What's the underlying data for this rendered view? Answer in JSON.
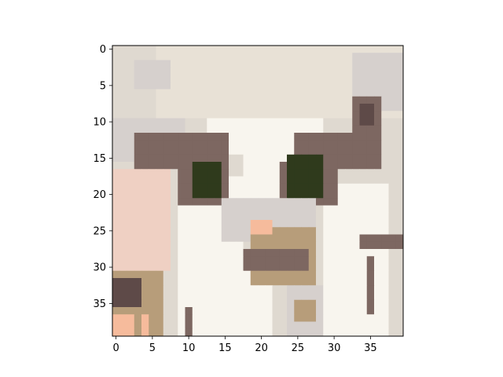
{
  "figure": {
    "xaxis": {
      "ticks": [
        "0",
        "5",
        "10",
        "15",
        "20",
        "25",
        "30",
        "35"
      ]
    },
    "yaxis": {
      "ticks": [
        "0",
        "5",
        "10",
        "15",
        "20",
        "25",
        "30",
        "35"
      ]
    }
  },
  "chart_data": {
    "type": "heatmap",
    "title": "",
    "xlabel": "",
    "ylabel": "",
    "xlim": [
      -0.5,
      39.5
    ],
    "ylim": [
      39.5,
      -0.5
    ],
    "grid": false,
    "legend": "none",
    "x_ticks": [
      0,
      5,
      10,
      15,
      20,
      25,
      30,
      35
    ],
    "y_ticks": [
      0,
      5,
      10,
      15,
      20,
      25,
      30,
      35
    ],
    "image_size": [
      40,
      40
    ],
    "palette": {
      "beige": "#dfd9d0",
      "cream": "#e8e1d6",
      "grey": "#d6d0cd",
      "white": "#f8f5ee",
      "brown": "#7d6761",
      "dark_brown": "#5e4a48",
      "dark_green": "#2f3a1c",
      "tan": "#b79d7a",
      "pink": "#efd0c3",
      "salmon": "#f6bb9c"
    },
    "regions": [
      {
        "color": "cream",
        "x0": 6,
        "y0": 0,
        "x1": 40,
        "y1": 10
      },
      {
        "color": "grey",
        "x0": 3,
        "y0": 2,
        "x1": 8,
        "y1": 6
      },
      {
        "color": "grey",
        "x0": 33,
        "y0": 1,
        "x1": 40,
        "y1": 9
      },
      {
        "color": "grey",
        "x0": 0,
        "y0": 10,
        "x1": 10,
        "y1": 16
      },
      {
        "color": "beige",
        "x0": 36,
        "y0": 10,
        "x1": 40,
        "y1": 26
      },
      {
        "color": "white",
        "x0": 13,
        "y0": 10,
        "x1": 29,
        "y1": 15
      },
      {
        "color": "pink",
        "x0": 0,
        "y0": 17,
        "x1": 8,
        "y1": 31
      },
      {
        "color": "brown",
        "x0": 3,
        "y0": 12,
        "x1": 16,
        "y1": 17
      },
      {
        "color": "brown",
        "x0": 25,
        "y0": 12,
        "x1": 37,
        "y1": 17
      },
      {
        "color": "brown",
        "x0": 33,
        "y0": 7,
        "x1": 37,
        "y1": 13
      },
      {
        "color": "dark_brown",
        "x0": 34,
        "y0": 8,
        "x1": 36,
        "y1": 11
      },
      {
        "color": "white",
        "x0": 9,
        "y0": 18,
        "x1": 18,
        "y1": 28
      },
      {
        "color": "white",
        "x0": 29,
        "y0": 19,
        "x1": 38,
        "y1": 30
      },
      {
        "color": "white",
        "x0": 9,
        "y0": 28,
        "x1": 22,
        "y1": 40
      },
      {
        "color": "white",
        "x0": 29,
        "y0": 29,
        "x1": 38,
        "y1": 40
      },
      {
        "color": "white",
        "x0": 18,
        "y0": 15,
        "x1": 24,
        "y1": 22
      },
      {
        "color": "brown",
        "x0": 9,
        "y0": 16,
        "x1": 16,
        "y1": 22
      },
      {
        "color": "brown",
        "x0": 23,
        "y0": 16,
        "x1": 31,
        "y1": 22
      },
      {
        "color": "dark_green",
        "x0": 11,
        "y0": 16,
        "x1": 15,
        "y1": 21
      },
      {
        "color": "dark_green",
        "x0": 24,
        "y0": 15,
        "x1": 29,
        "y1": 21
      },
      {
        "color": "grey",
        "x0": 15,
        "y0": 21,
        "x1": 28,
        "y1": 27
      },
      {
        "color": "tan",
        "x0": 19,
        "y0": 25,
        "x1": 28,
        "y1": 33
      },
      {
        "color": "brown",
        "x0": 18,
        "y0": 28,
        "x1": 27,
        "y1": 31
      },
      {
        "color": "salmon",
        "x0": 19,
        "y0": 24,
        "x1": 22,
        "y1": 26
      },
      {
        "color": "tan",
        "x0": 0,
        "y0": 31,
        "x1": 7,
        "y1": 40
      },
      {
        "color": "dark_brown",
        "x0": 0,
        "y0": 32,
        "x1": 4,
        "y1": 36
      },
      {
        "color": "salmon",
        "x0": 0,
        "y0": 37,
        "x1": 3,
        "y1": 40
      },
      {
        "color": "salmon",
        "x0": 4,
        "y0": 37,
        "x1": 5,
        "y1": 40
      },
      {
        "color": "brown",
        "x0": 10,
        "y0": 36,
        "x1": 11,
        "y1": 40
      },
      {
        "color": "brown",
        "x0": 34,
        "y0": 26,
        "x1": 40,
        "y1": 28
      },
      {
        "color": "brown",
        "x0": 35,
        "y0": 29,
        "x1": 36,
        "y1": 37
      },
      {
        "color": "grey",
        "x0": 24,
        "y0": 33,
        "x1": 29,
        "y1": 40
      },
      {
        "color": "tan",
        "x0": 25,
        "y0": 35,
        "x1": 28,
        "y1": 38
      }
    ]
  }
}
